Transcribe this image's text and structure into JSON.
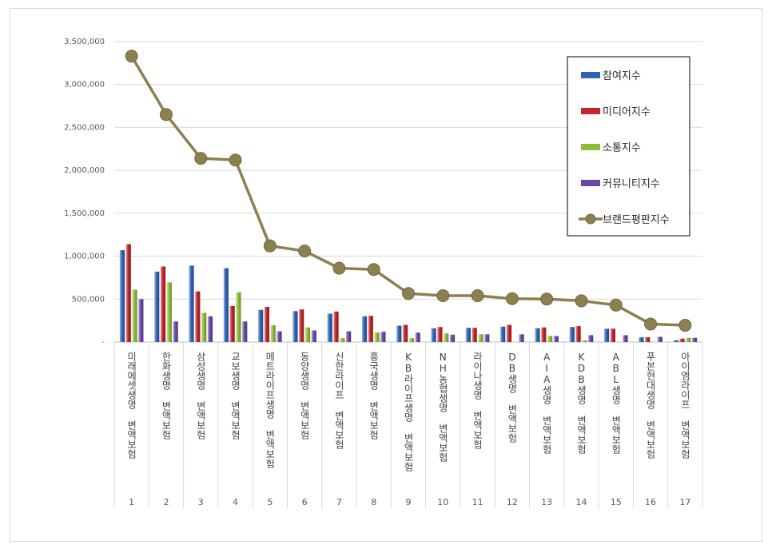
{
  "chart_data": {
    "type": "bar",
    "categories": [
      "미래에셋생명 변액보험",
      "한화생명 변액보험",
      "삼성생명 변액보험",
      "교보생명 변액보험",
      "메트라이프생명 변액보험",
      "동양생명 변액보험",
      "신한라이프 변액보험",
      "흥국생명 변액보험",
      "KB라이프생명 변액보험",
      "NH농협생명 변액보험",
      "라이나생명 변액보험",
      "DB생명 변액보험",
      "AIA생명 변액보험",
      "KDB생명 변액보험",
      "ABL생명 변액보험",
      "푸본현대생명 변액보험",
      "아이엠라이프 변액보험"
    ],
    "ranks": [
      "1",
      "2",
      "3",
      "4",
      "5",
      "6",
      "7",
      "8",
      "9",
      "10",
      "11",
      "12",
      "13",
      "14",
      "15",
      "16",
      "17"
    ],
    "series": [
      {
        "name": "참여지수",
        "kind": "bar",
        "color": "#2E64B5",
        "values": [
          1070000,
          820000,
          890000,
          860000,
          375000,
          360000,
          330000,
          300000,
          190000,
          160000,
          165000,
          180000,
          160000,
          175000,
          155000,
          55000,
          20000
        ]
      },
      {
        "name": "미디어지수",
        "kind": "bar",
        "color": "#C0262B",
        "values": [
          1140000,
          880000,
          590000,
          420000,
          410000,
          380000,
          355000,
          305000,
          200000,
          175000,
          165000,
          200000,
          170000,
          185000,
          155000,
          55000,
          40000
        ]
      },
      {
        "name": "소통지수",
        "kind": "bar",
        "color": "#8DBE3A",
        "values": [
          610000,
          695000,
          340000,
          580000,
          195000,
          170000,
          45000,
          110000,
          45000,
          100000,
          90000,
          0,
          70000,
          20000,
          0,
          0,
          50000
        ]
      },
      {
        "name": "커뮤니티지수",
        "kind": "bar",
        "color": "#6A48A8",
        "values": [
          500000,
          240000,
          300000,
          240000,
          125000,
          135000,
          125000,
          120000,
          110000,
          85000,
          90000,
          90000,
          70000,
          80000,
          80000,
          60000,
          50000
        ]
      },
      {
        "name": "브랜드평판지수",
        "kind": "line",
        "color": "#8B8150",
        "values": [
          3330000,
          2650000,
          2140000,
          2120000,
          1120000,
          1060000,
          860000,
          845000,
          565000,
          540000,
          540000,
          505000,
          500000,
          480000,
          430000,
          210000,
          195000
        ]
      }
    ],
    "ylim": [
      0,
      3500000
    ],
    "yticks": [
      "-",
      "500,000",
      "1,000,000",
      "1,500,000",
      "2,000,000",
      "2,500,000",
      "3,000,000",
      "3,500,000"
    ],
    "grid": true,
    "legend_position": "top-right",
    "title": "",
    "xlabel": "",
    "ylabel": ""
  }
}
